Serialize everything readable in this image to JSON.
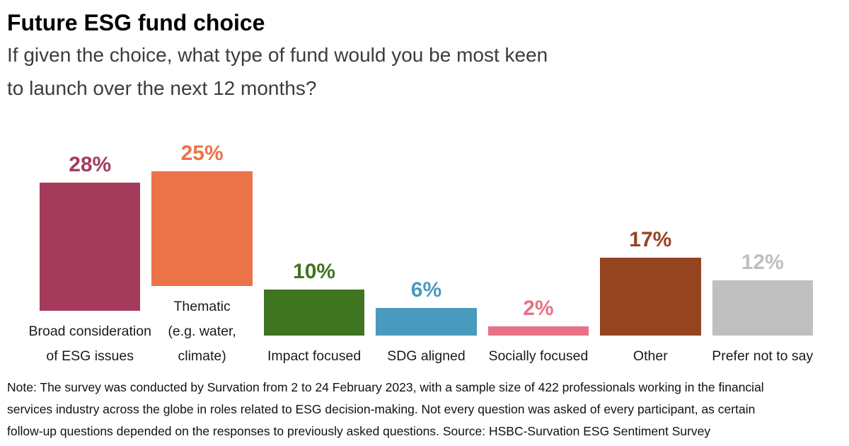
{
  "header": {
    "title": "Future ESG fund choice",
    "subtitle_line1": "If given the choice, what type of fund would you be most keen",
    "subtitle_line2": "to launch over the next 12 months?"
  },
  "chart_data": {
    "type": "bar",
    "title": "Future ESG fund choice",
    "subtitle": "If given the choice, what type of fund would you be most keen to launch over the next 12 months?",
    "unit": "percent",
    "ylim": [
      0,
      30
    ],
    "grid": false,
    "legend": false,
    "categories": [
      "Broad consideration of ESG issues",
      "Thematic (e.g. water, climate)",
      "Impact focused",
      "SDG aligned",
      "Socially focused",
      "Other",
      "Prefer not to say"
    ],
    "category_lines": [
      [
        "Broad consideration",
        "of ESG issues"
      ],
      [
        "Thematic",
        "(e.g. water,",
        "climate)"
      ],
      [
        "Impact focused"
      ],
      [
        "SDG aligned"
      ],
      [
        "Socially focused"
      ],
      [
        "Other"
      ],
      [
        "Prefer not to say"
      ]
    ],
    "values": [
      28,
      25,
      10,
      6,
      2,
      17,
      12
    ],
    "value_labels": [
      "28%",
      "25%",
      "10%",
      "6%",
      "2%",
      "17%",
      "12%"
    ],
    "colors": [
      "#a53b5b",
      "#ec7348",
      "#3f7421",
      "#4a9abd",
      "#e77287",
      "#964420",
      "#bfbfbf"
    ]
  },
  "footer": {
    "note_lines": [
      "Note: The survey was conducted by Survation from 2 to 24 February 2023, with a sample size of 422 professionals working in the financial",
      "services industry across the globe in roles related to ESG decision-making. Not every question was asked of every participant, as certain",
      "follow-up questions depended on the responses to previously asked questions. Source: HSBC-Survation ESG Sentiment Survey"
    ]
  }
}
